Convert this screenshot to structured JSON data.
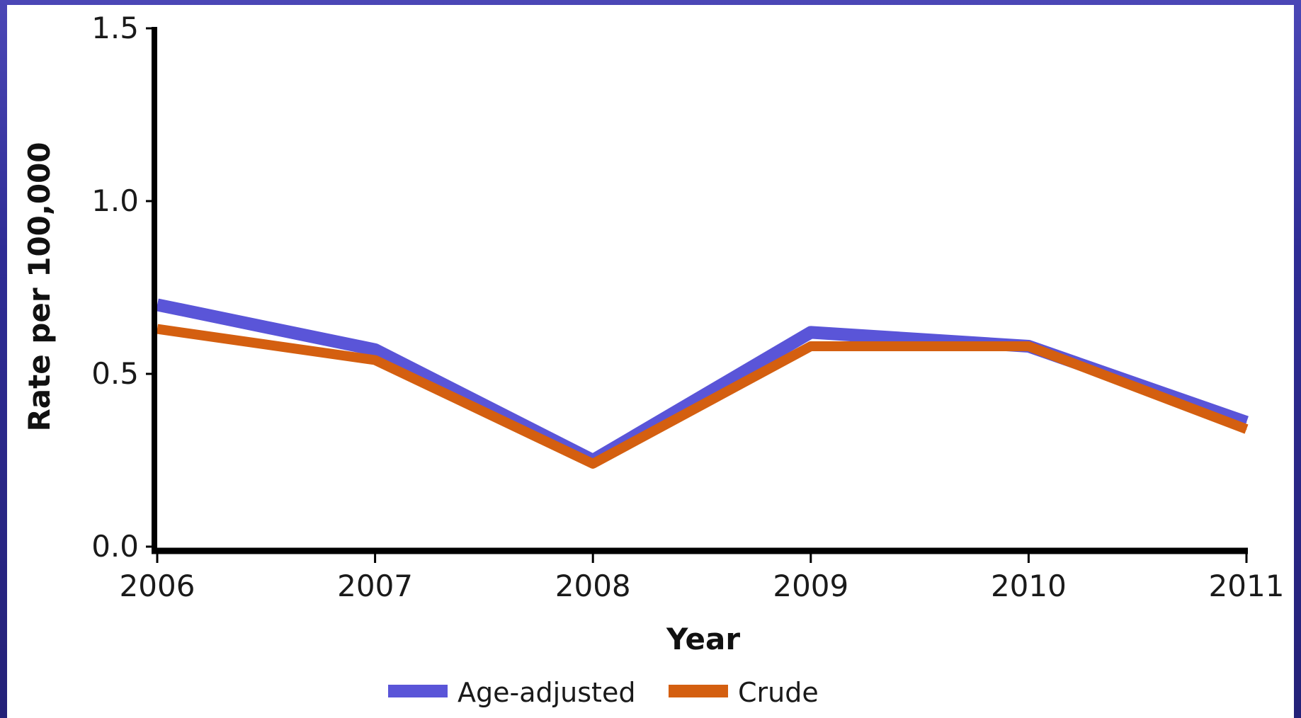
{
  "chart_data": {
    "type": "line",
    "x": [
      "2006",
      "2007",
      "2008",
      "2009",
      "2010",
      "2011"
    ],
    "series": [
      {
        "name": "Age-adjusted",
        "values": [
          0.7,
          0.57,
          0.25,
          0.62,
          0.58,
          0.36
        ],
        "color": "#5a55d8"
      },
      {
        "name": "Crude",
        "values": [
          0.63,
          0.54,
          0.24,
          0.58,
          0.58,
          0.34
        ],
        "color": "#d45f10"
      }
    ],
    "xlabel": "Year",
    "ylabel": "Rate per 100,000",
    "ylim": [
      0,
      1.5
    ],
    "yticks": [
      "0.0",
      "0.5",
      "1.0",
      "1.5"
    ],
    "grid": false,
    "legend_position": "bottom"
  }
}
